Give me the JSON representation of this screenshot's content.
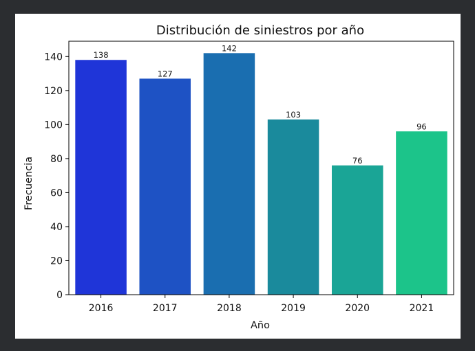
{
  "chart_data": {
    "type": "bar",
    "title": "Distribución de siniestros por año",
    "xlabel": "Año",
    "ylabel": "Frecuencia",
    "categories": [
      "2016",
      "2017",
      "2018",
      "2019",
      "2020",
      "2021"
    ],
    "values": [
      138,
      127,
      142,
      103,
      76,
      96
    ],
    "data_labels": [
      "138",
      "127",
      "142",
      "103",
      "76",
      "96"
    ],
    "colors": [
      "#1f35d8",
      "#1e52c4",
      "#1a6eb0",
      "#1a8a9c",
      "#1aa596",
      "#1cc48a"
    ],
    "ylim": [
      0,
      149
    ],
    "yticks": [
      0,
      20,
      40,
      60,
      80,
      100,
      120,
      140
    ],
    "ytick_labels": [
      "0",
      "20",
      "40",
      "60",
      "80",
      "100",
      "120",
      "140"
    ],
    "grid": false,
    "legend": "none"
  }
}
